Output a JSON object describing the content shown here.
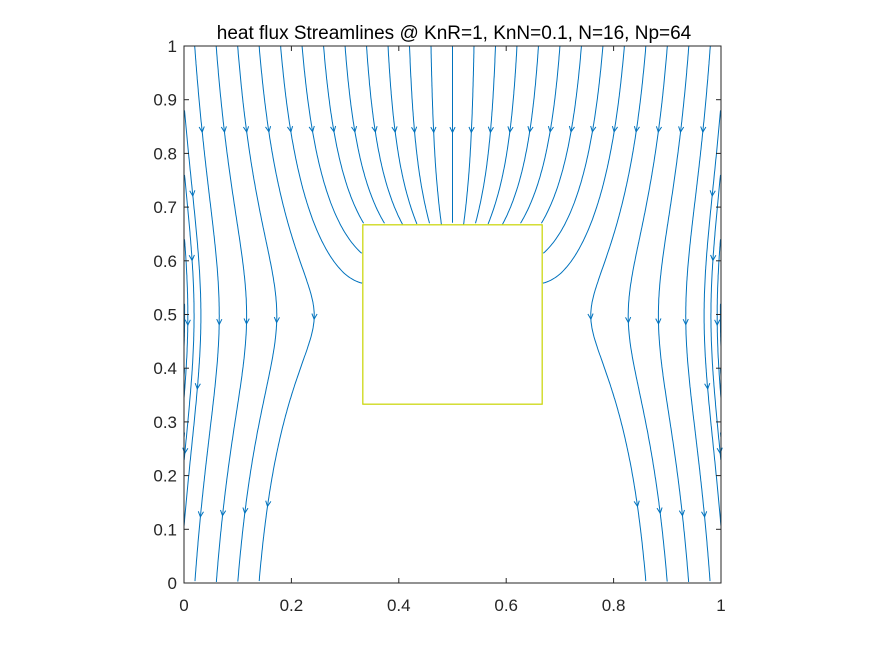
{
  "chart_data": {
    "type": "streamline",
    "title": "heat flux Streamlines @ KnR=1, KnN=0.1, N=16, Np=64",
    "xlabel": "",
    "ylabel": "",
    "xlim": [
      0,
      1
    ],
    "ylim": [
      0,
      1
    ],
    "x_ticks": [
      "0",
      "0.2",
      "0.4",
      "0.6",
      "0.8",
      "1"
    ],
    "y_ticks": [
      "0",
      "0.1",
      "0.2",
      "0.3",
      "0.4",
      "0.5",
      "0.6",
      "0.7",
      "0.8",
      "0.9",
      "1"
    ],
    "obstacle": {
      "x": [
        0.333,
        0.667
      ],
      "y": [
        0.333,
        0.667
      ]
    },
    "flow_direction": "downward, diverging around the central square",
    "grid": false,
    "colors": {
      "streamline": "#0072BD",
      "obstacle_edge": "#c8d400",
      "axes": "#262626"
    }
  }
}
